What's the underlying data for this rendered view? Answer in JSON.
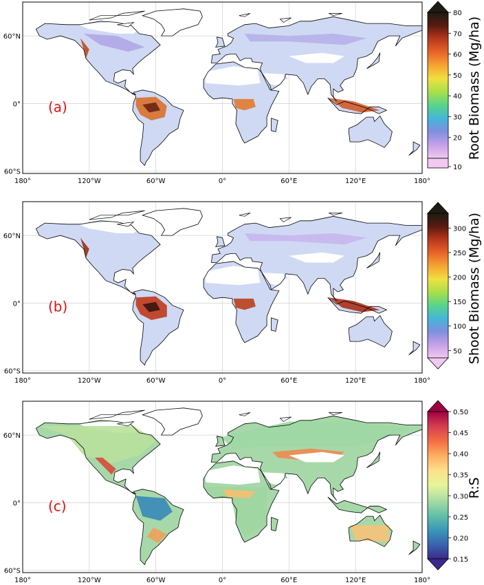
{
  "x_ticks": [
    "180°",
    "120°W",
    "60°W",
    "0°",
    "60°E",
    "120°E",
    "180°"
  ],
  "y_ticks": [
    "60°N",
    "0°",
    "60°S"
  ],
  "panels": [
    {
      "label": "(a)",
      "colorbar_title": "Root Biomass (Mg/ha)",
      "colorbar_ticks": [
        "80",
        "70",
        "60",
        "50",
        "40",
        "30",
        "20",
        "10"
      ],
      "colorbar_range": [
        10,
        80
      ],
      "colorbar_colors": [
        "#f1c9f1",
        "#c7a0e8",
        "#7f8fe0",
        "#45b6d8",
        "#58d48a",
        "#a8e04a",
        "#f0e040",
        "#f6a432",
        "#e8642a",
        "#b8381c",
        "#5a1a10",
        "#1c1c14"
      ]
    },
    {
      "label": "(b)",
      "colorbar_title": "Shoot Biomass (Mg/ha)",
      "colorbar_ticks": [
        "300",
        "250",
        "200",
        "150",
        "100",
        "50"
      ],
      "colorbar_range": [
        35,
        330
      ],
      "colorbar_colors": [
        "#f1c9f1",
        "#c7a0e8",
        "#7f8fe0",
        "#45b6d8",
        "#58d48a",
        "#a8e04a",
        "#f0e040",
        "#f6a432",
        "#e8642a",
        "#b8381c",
        "#5a1a10",
        "#1c1c14"
      ]
    },
    {
      "label": "(c)",
      "colorbar_title": "R:S",
      "colorbar_ticks": [
        "0.50",
        "0.45",
        "0.40",
        "0.35",
        "0.30",
        "0.25",
        "0.20",
        "0.15"
      ],
      "colorbar_range": [
        0.15,
        0.5
      ],
      "colorbar_colors": [
        "#3d2a8c",
        "#3a64b0",
        "#3a9ab8",
        "#66c2a5",
        "#abdda4",
        "#e6f598",
        "#fee08b",
        "#fdae61",
        "#f46d43",
        "#d53e4f",
        "#9e0142"
      ]
    }
  ],
  "colors": {
    "label": "#e01010",
    "land_low_a": "#cfd8f2",
    "ocean": "#ffffff"
  }
}
